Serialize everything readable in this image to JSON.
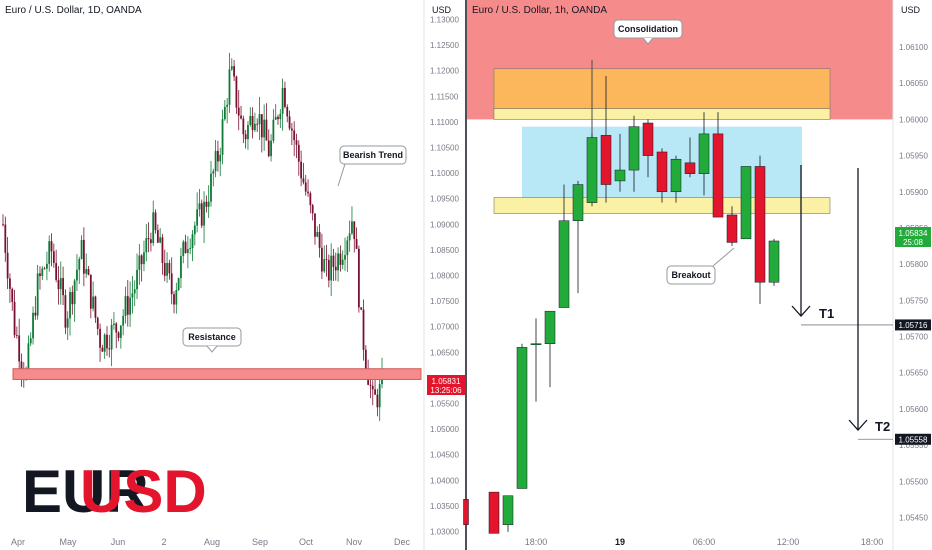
{
  "brand": {
    "part1": "EUR",
    "part2": "USD"
  },
  "left_panel": {
    "title": "Euro / U.S. Dollar, 1D, OANDA",
    "unit": "USD",
    "ytick_labels": [
      "1.13000",
      "1.12500",
      "1.12000",
      "1.11500",
      "1.11000",
      "1.10500",
      "1.10000",
      "1.09500",
      "1.09000",
      "1.08500",
      "1.08000",
      "1.07500",
      "1.07000",
      "1.06500",
      "1.06000",
      "1.05500",
      "1.05000",
      "1.04500",
      "1.04000",
      "1.03500",
      "1.03000"
    ],
    "xtick_labels": [
      "Apr",
      "May",
      "Jun",
      "2",
      "Aug",
      "Sep",
      "Oct",
      "Nov",
      "Dec"
    ],
    "annotations": {
      "trend": "Bearish Trend",
      "resistance": "Resistance"
    },
    "price_label": {
      "price": "1.05831",
      "countdown": "13:25:06"
    }
  },
  "right_panel": {
    "title": "Euro / U.S. Dollar, 1h, OANDA",
    "unit": "USD",
    "ytick_labels": [
      "1.06100",
      "1.06050",
      "1.06000",
      "1.05950",
      "1.05900",
      "1.05850",
      "1.05800",
      "1.05750",
      "1.05700",
      "1.05650",
      "1.05600",
      "1.05550",
      "1.05500",
      "1.05450"
    ],
    "xtick_labels": [
      "18:00",
      "19",
      "06:00",
      "12:00",
      "18:00"
    ],
    "annotations": {
      "consolidation": "Consolidation",
      "breakout": "Breakout",
      "target1": "T1",
      "target2": "T2"
    },
    "price_label": {
      "price": "1.05834",
      "countdown": "25:08"
    },
    "target_prices": {
      "t1": "1.05716",
      "t2": "1.05558"
    }
  },
  "chart_data": [
    {
      "type": "candlestick",
      "title": "Euro / U.S. Dollar, 1D, OANDA",
      "ylabel": "USD",
      "ylim": [
        1.0264,
        1.1338
      ],
      "x_labels": [
        "Apr",
        "May",
        "Jun",
        "2",
        "Aug",
        "Sep",
        "Oct",
        "Nov",
        "Dec"
      ],
      "trend_path": [
        [
          0,
          1.09
        ],
        [
          10,
          1.07
        ],
        [
          20,
          1.06
        ],
        [
          30,
          1.078
        ],
        [
          42,
          1.085
        ],
        [
          55,
          1.072
        ],
        [
          68,
          1.085
        ],
        [
          85,
          1.067
        ],
        [
          100,
          1.07
        ],
        [
          115,
          1.078
        ],
        [
          130,
          1.09
        ],
        [
          148,
          1.076
        ],
        [
          160,
          1.087
        ],
        [
          175,
          1.093
        ],
        [
          188,
          1.104
        ],
        [
          198,
          1.12
        ],
        [
          210,
          1.107
        ],
        [
          220,
          1.113
        ],
        [
          232,
          1.104
        ],
        [
          244,
          1.117
        ],
        [
          256,
          1.104
        ],
        [
          268,
          1.092
        ],
        [
          282,
          1.08
        ],
        [
          295,
          1.085
        ],
        [
          305,
          1.092
        ],
        [
          312,
          1.07
        ],
        [
          322,
          1.055
        ],
        [
          330,
          1.058
        ]
      ],
      "candle_count": 165,
      "resistance_zone": [
        1.0597,
        1.0618
      ],
      "current_price": 1.05831
    },
    {
      "type": "candlestick",
      "title": "Euro / U.S. Dollar, 1h, OANDA",
      "ylabel": "USD",
      "ylim": [
        1.05405,
        1.06165
      ],
      "x_labels": [
        "18:00",
        "19",
        "06:00",
        "12:00",
        "18:00"
      ],
      "candles": [
        {
          "o": 1.05475,
          "h": 1.05475,
          "l": 1.0544,
          "c": 1.0544
        },
        {
          "o": 1.05485,
          "h": 1.05485,
          "l": 1.05428,
          "c": 1.05428
        },
        {
          "o": 1.0544,
          "h": 1.0548,
          "l": 1.0543,
          "c": 1.0548
        },
        {
          "o": 1.0549,
          "h": 1.0569,
          "l": 1.0549,
          "c": 1.05685
        },
        {
          "o": 1.0569,
          "h": 1.05725,
          "l": 1.0561,
          "c": 1.0569
        },
        {
          "o": 1.0569,
          "h": 1.0573,
          "l": 1.0563,
          "c": 1.05735
        },
        {
          "o": 1.0574,
          "h": 1.0591,
          "l": 1.0574,
          "c": 1.0586
        },
        {
          "o": 1.0586,
          "h": 1.05915,
          "l": 1.0576,
          "c": 1.0591
        },
        {
          "o": 1.05885,
          "h": 1.0598,
          "l": 1.0588,
          "c": 1.05975
        },
        {
          "o": 1.05978,
          "h": 1.0606,
          "l": 1.05885,
          "c": 1.0591
        },
        {
          "o": 1.05915,
          "h": 1.0598,
          "l": 1.059,
          "c": 1.0593
        },
        {
          "o": 1.0593,
          "h": 1.06005,
          "l": 1.059,
          "c": 1.0599
        },
        {
          "o": 1.05995,
          "h": 1.06,
          "l": 1.0592,
          "c": 1.0595
        },
        {
          "o": 1.05955,
          "h": 1.0596,
          "l": 1.05885,
          "c": 1.059
        },
        {
          "o": 1.059,
          "h": 1.0595,
          "l": 1.05885,
          "c": 1.05945
        },
        {
          "o": 1.0594,
          "h": 1.05975,
          "l": 1.0592,
          "c": 1.05925
        },
        {
          "o": 1.05925,
          "h": 1.0601,
          "l": 1.05895,
          "c": 1.0598
        },
        {
          "o": 1.0598,
          "h": 1.0601,
          "l": 1.05865,
          "c": 1.05865
        },
        {
          "o": 1.05868,
          "h": 1.0588,
          "l": 1.05825,
          "c": 1.0583
        },
        {
          "o": 1.05835,
          "h": 1.05935,
          "l": 1.05835,
          "c": 1.05935
        },
        {
          "o": 1.05935,
          "h": 1.0595,
          "l": 1.05745,
          "c": 1.05775
        },
        {
          "o": 1.05775,
          "h": 1.05835,
          "l": 1.0577,
          "c": 1.05832
        }
      ],
      "resistance_zone": [
        1.06,
        1.0617
      ],
      "supply_zone": [
        1.06015,
        1.0607
      ],
      "consolidation_box": [
        1.0589,
        1.0599
      ],
      "zone_bands": [
        [
          1.06,
          1.06015
        ],
        [
          1.0587,
          1.05892
        ]
      ],
      "targets": {
        "t1": 1.05716,
        "t2": 1.05558
      },
      "current_price": 1.05834
    }
  ],
  "colors": {
    "bull": "#22ab3a",
    "bear": "#e3152d",
    "resistance_zone": "#f68b8b",
    "supply_zone": "#fcb75d",
    "band_zone": "#fbf1a4",
    "consolidation_zone": "#b8e8f6",
    "left_trend_up": "#0d7a36",
    "left_trend_down": "#7a1030"
  }
}
